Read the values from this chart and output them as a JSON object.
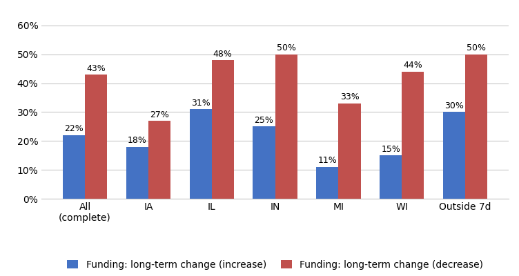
{
  "categories": [
    "All\n(complete)",
    "IA",
    "IL",
    "IN",
    "MI",
    "WI",
    "Outside 7d"
  ],
  "increase_values": [
    0.22,
    0.18,
    0.31,
    0.25,
    0.11,
    0.15,
    0.3
  ],
  "decrease_values": [
    0.43,
    0.27,
    0.48,
    0.5,
    0.33,
    0.44,
    0.5
  ],
  "increase_labels": [
    "22%",
    "18%",
    "31%",
    "25%",
    "11%",
    "15%",
    "30%"
  ],
  "decrease_labels": [
    "43%",
    "27%",
    "48%",
    "50%",
    "33%",
    "44%",
    "50%"
  ],
  "increase_color": "#4472C4",
  "decrease_color": "#C0504D",
  "legend_increase": "Funding: long-term change (increase)",
  "legend_decrease": "Funding: long-term change (decrease)",
  "ylim": [
    0,
    0.65
  ],
  "yticks": [
    0.0,
    0.1,
    0.2,
    0.3,
    0.4,
    0.5,
    0.6
  ],
  "ytick_labels": [
    "0%",
    "10%",
    "20%",
    "30%",
    "40%",
    "50%",
    "60%"
  ],
  "bar_width": 0.35,
  "label_fontsize": 9,
  "tick_fontsize": 10,
  "legend_fontsize": 10,
  "background_color": "#ffffff",
  "grid_color": "#c8c8c8"
}
